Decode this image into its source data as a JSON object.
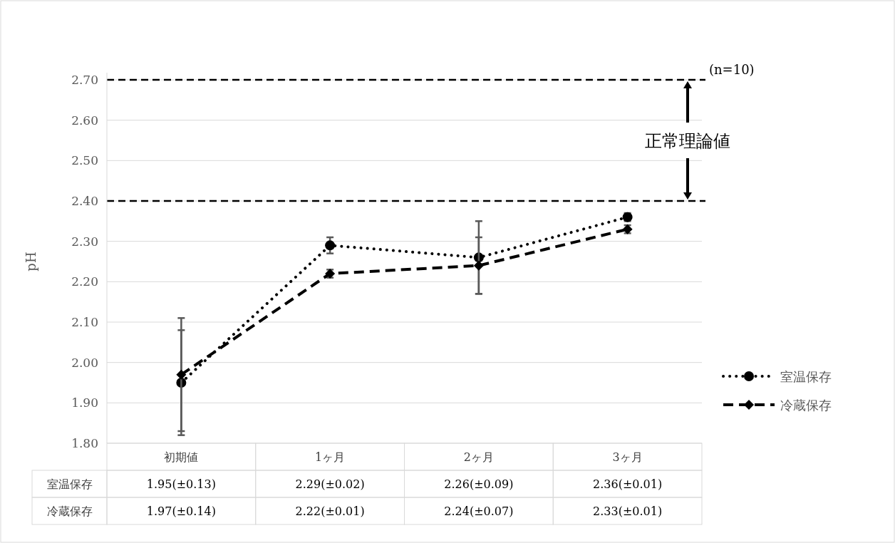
{
  "chart_data": {
    "type": "line",
    "ylabel": "pH",
    "categories": [
      "初期値",
      "1ヶ月",
      "2ヶ月",
      "3ヶ月"
    ],
    "series": [
      {
        "name": "室温保存",
        "color": "#000000",
        "values": [
          1.95,
          2.29,
          2.26,
          2.36
        ],
        "errors": [
          0.13,
          0.02,
          0.09,
          0.01
        ],
        "value_labels": [
          "1.95(±0.13)",
          "2.29(±0.02)",
          "2.26(±0.09)",
          "2.36(±0.01)"
        ],
        "marker": "circle",
        "line_style": "dotted"
      },
      {
        "name": "冷蔵保存",
        "color": "#000000",
        "values": [
          1.97,
          2.22,
          2.24,
          2.33
        ],
        "errors": [
          0.14,
          0.01,
          0.07,
          0.01
        ],
        "value_labels": [
          "1.97(±0.14)",
          "2.22(±0.01)",
          "2.24(±0.07)",
          "2.33(±0.01)"
        ],
        "marker": "diamond",
        "line_style": "dashed"
      }
    ],
    "ylim": [
      1.8,
      2.7
    ],
    "yticks": [
      {
        "value": 1.8,
        "label": "1.80"
      },
      {
        "value": 1.9,
        "label": "1.90"
      },
      {
        "value": 2.0,
        "label": "2.00"
      },
      {
        "value": 2.1,
        "label": "2.10"
      },
      {
        "value": 2.2,
        "label": "2.20"
      },
      {
        "value": 2.3,
        "label": "2.30"
      },
      {
        "value": 2.4,
        "label": "2.40"
      },
      {
        "value": 2.5,
        "label": "2.50"
      },
      {
        "value": 2.6,
        "label": "2.60"
      },
      {
        "value": 2.7,
        "label": "2.70"
      }
    ],
    "grid": "y",
    "legend": "right",
    "ref_lines": [
      {
        "axis": "y",
        "value": 2.7,
        "color": "#000000",
        "line_style": "dashed"
      },
      {
        "axis": "y",
        "value": 2.4,
        "color": "#000000",
        "line_style": "dashed"
      }
    ],
    "annotations": [
      "(n=10)",
      "正常理論値"
    ]
  }
}
